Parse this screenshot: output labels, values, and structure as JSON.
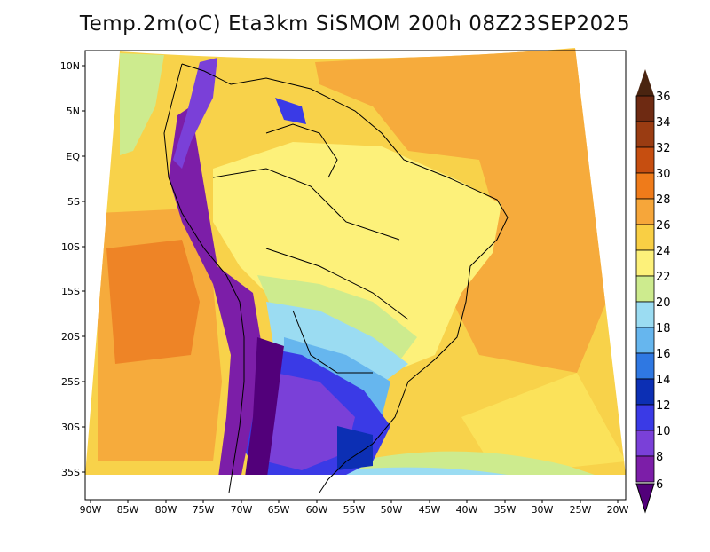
{
  "title": "Temp.2m(oC) Eta3km SiSMOM 200h 08Z23SEP2025",
  "map": {
    "lat_labels": [
      "10N",
      "5N",
      "EQ",
      "5S",
      "10S",
      "15S",
      "20S",
      "25S",
      "30S",
      "35S"
    ],
    "lon_labels": [
      "90W",
      "85W",
      "80W",
      "75W",
      "70W",
      "65W",
      "60W",
      "55W",
      "50W",
      "45W",
      "40W",
      "35W",
      "30W",
      "25W",
      "20W"
    ]
  },
  "colorbar": {
    "labels": [
      "36",
      "34",
      "32",
      "30",
      "28",
      "26",
      "24",
      "22",
      "20",
      "18",
      "16",
      "14",
      "12",
      "10",
      "8",
      "6"
    ],
    "top_color": "#4a2410",
    "bottom_color": "#52007a",
    "colors": [
      "#6e2a12",
      "#9a3c12",
      "#c64e10",
      "#ef7b1a",
      "#f6a63a",
      "#f9cf44",
      "#fdf17a",
      "#cdeb8e",
      "#9bdcf2",
      "#66b6ee",
      "#2f78e2",
      "#0c2fb4",
      "#3a3ae6",
      "#7a40d8",
      "#7c1ea8"
    ]
  }
}
